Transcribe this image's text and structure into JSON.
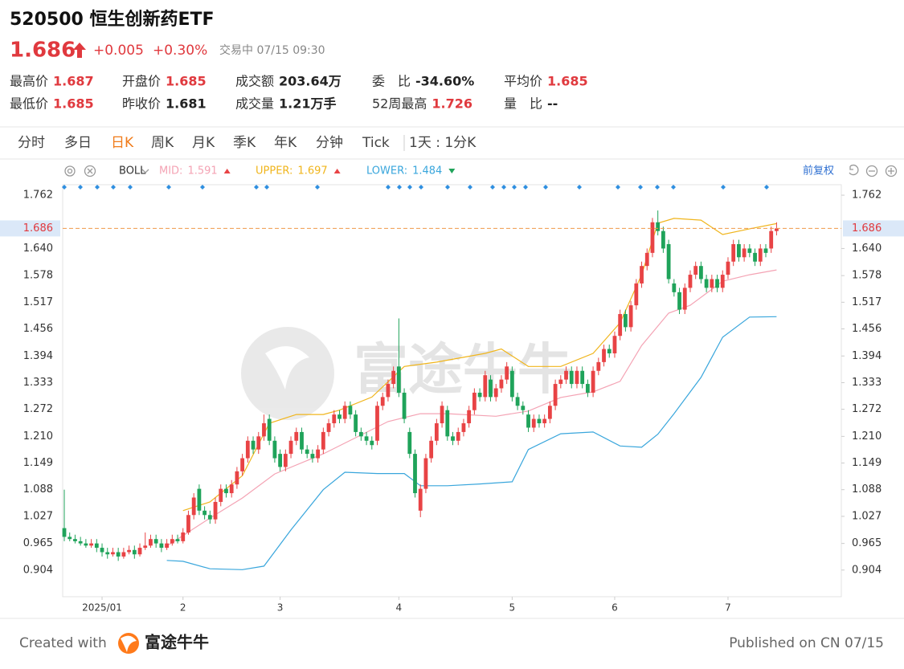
{
  "header": {
    "title": "520500 恒生创新药ETF",
    "price": "1.686",
    "change": "+0.005",
    "change_pct": "+0.30%",
    "status": "交易中 07/15 09:30"
  },
  "stats": [
    [
      {
        "label": "最高价",
        "value": "1.687",
        "color": "#e0393e"
      },
      {
        "label": "开盘价",
        "value": "1.685",
        "color": "#e0393e"
      },
      {
        "label": "成交额",
        "value": "203.64万",
        "color": "#222222"
      },
      {
        "label": "委　比",
        "value": "-34.60%",
        "color": "#222222"
      },
      {
        "label": "平均价",
        "value": "1.685",
        "color": "#e0393e"
      }
    ],
    [
      {
        "label": "最低价",
        "value": "1.685",
        "color": "#e0393e"
      },
      {
        "label": "昨收价",
        "value": "1.681",
        "color": "#222222"
      },
      {
        "label": "成交量",
        "value": "1.21万手",
        "color": "#222222"
      },
      {
        "label": "52周最高",
        "value": "1.726",
        "color": "#e0393e"
      },
      {
        "label": "量　比",
        "value": "--",
        "color": "#222222"
      }
    ]
  ],
  "tabs": [
    "分时",
    "多日",
    "日K",
    "周K",
    "月K",
    "季K",
    "年K",
    "分钟",
    "Tick",
    "1天 : 1分K"
  ],
  "active_tab": 2,
  "footer": {
    "created": "Created with",
    "brand": "富途牛牛",
    "published": "Published on CN 07/15"
  },
  "chart_data": {
    "type": "candlestick",
    "indicator": "BOLL",
    "adjust": "前复权",
    "watermark": "富途牛牛",
    "up_color": "#e84345",
    "down_color": "#1fa35a",
    "last_price": 1.686,
    "xlim": [
      -0.3,
      144
    ],
    "ylim": [
      0.843,
      1.786
    ],
    "xticks": [
      {
        "value": 7,
        "label": "2025/01"
      },
      {
        "value": 22,
        "label": "2"
      },
      {
        "value": 40,
        "label": "3"
      },
      {
        "value": 62,
        "label": "4"
      },
      {
        "value": 83,
        "label": "5"
      },
      {
        "value": 102,
        "label": "6"
      },
      {
        "value": 123,
        "label": "7"
      }
    ],
    "yticks": [
      0.904,
      0.965,
      1.027,
      1.088,
      1.149,
      {
        "value": 1.21,
        "label": "1.210"
      },
      1.272,
      1.333,
      1.394,
      1.456,
      1.517,
      1.578,
      {
        "value": 1.64,
        "label": "1.640"
      },
      1.762
    ],
    "open": [
      1.0,
      0.98,
      0.975,
      0.97,
      0.965,
      0.96,
      0.965,
      0.955,
      0.945,
      0.94,
      0.945,
      0.935,
      0.945,
      0.95,
      0.94,
      0.955,
      0.96,
      0.975,
      0.965,
      0.955,
      0.965,
      0.975,
      0.97,
      0.99,
      1.03,
      1.09,
      1.04,
      1.03,
      1.02,
      1.06,
      1.09,
      1.08,
      1.1,
      1.13,
      1.16,
      1.2,
      1.18,
      1.21,
      1.25,
      1.2,
      1.17,
      1.14,
      1.17,
      1.2,
      1.22,
      1.18,
      1.17,
      1.16,
      1.18,
      1.22,
      1.24,
      1.26,
      1.25,
      1.28,
      1.26,
      1.22,
      1.21,
      1.2,
      1.2,
      1.28,
      1.3,
      1.33,
      1.37,
      1.31,
      1.22,
      1.17,
      1.04,
      1.09,
      1.16,
      1.2,
      1.24,
      1.27,
      1.21,
      1.2,
      1.22,
      1.24,
      1.27,
      1.31,
      1.3,
      1.34,
      1.3,
      1.32,
      1.34,
      1.36,
      1.3,
      1.28,
      1.26,
      1.23,
      1.25,
      1.24,
      1.25,
      1.28,
      1.33,
      1.34,
      1.36,
      1.33,
      1.36,
      1.33,
      1.31,
      1.36,
      1.38,
      1.41,
      1.4,
      1.44,
      1.49,
      1.46,
      1.51,
      1.56,
      1.6,
      1.63,
      1.7,
      1.68,
      1.65,
      1.56,
      1.54,
      1.5,
      1.55,
      1.58,
      1.6,
      1.57,
      1.55,
      1.57,
      1.55,
      1.58,
      1.61,
      1.65,
      1.62,
      1.64,
      1.63,
      1.61,
      1.64,
      1.64,
      1.68
    ],
    "high": [
      1.088,
      0.99,
      0.985,
      0.98,
      0.975,
      0.975,
      0.975,
      0.965,
      0.955,
      0.955,
      0.955,
      0.955,
      0.96,
      0.96,
      0.965,
      0.99,
      0.985,
      0.985,
      0.975,
      0.975,
      0.985,
      0.985,
      1.0,
      1.04,
      1.08,
      1.1,
      1.05,
      1.04,
      1.07,
      1.1,
      1.1,
      1.11,
      1.14,
      1.17,
      1.21,
      1.21,
      1.22,
      1.26,
      1.26,
      1.21,
      1.18,
      1.18,
      1.21,
      1.23,
      1.23,
      1.19,
      1.18,
      1.19,
      1.23,
      1.25,
      1.27,
      1.27,
      1.29,
      1.29,
      1.27,
      1.23,
      1.22,
      1.21,
      1.29,
      1.31,
      1.34,
      1.37,
      1.48,
      1.32,
      1.23,
      1.18,
      1.1,
      1.17,
      1.21,
      1.25,
      1.29,
      1.28,
      1.22,
      1.23,
      1.25,
      1.28,
      1.32,
      1.32,
      1.36,
      1.35,
      1.33,
      1.35,
      1.38,
      1.37,
      1.31,
      1.29,
      1.27,
      1.26,
      1.26,
      1.26,
      1.29,
      1.34,
      1.35,
      1.37,
      1.37,
      1.37,
      1.37,
      1.34,
      1.37,
      1.39,
      1.42,
      1.42,
      1.45,
      1.5,
      1.5,
      1.52,
      1.57,
      1.61,
      1.64,
      1.71,
      1.727,
      1.69,
      1.66,
      1.57,
      1.55,
      1.56,
      1.59,
      1.61,
      1.61,
      1.58,
      1.58,
      1.58,
      1.59,
      1.62,
      1.66,
      1.66,
      1.65,
      1.65,
      1.64,
      1.65,
      1.65,
      1.69,
      1.7
    ],
    "low": [
      0.97,
      0.97,
      0.965,
      0.96,
      0.955,
      0.955,
      0.945,
      0.935,
      0.93,
      0.935,
      0.925,
      0.93,
      0.94,
      0.93,
      0.935,
      0.95,
      0.955,
      0.955,
      0.945,
      0.95,
      0.96,
      0.965,
      0.965,
      0.985,
      1.02,
      1.03,
      1.02,
      1.01,
      1.01,
      1.05,
      1.07,
      1.07,
      1.09,
      1.12,
      1.15,
      1.17,
      1.17,
      1.2,
      1.19,
      1.15,
      1.13,
      1.13,
      1.16,
      1.19,
      1.17,
      1.16,
      1.15,
      1.15,
      1.17,
      1.21,
      1.23,
      1.24,
      1.24,
      1.25,
      1.21,
      1.2,
      1.19,
      1.18,
      1.19,
      1.27,
      1.29,
      1.32,
      1.3,
      1.24,
      1.16,
      1.07,
      1.025,
      1.08,
      1.15,
      1.19,
      1.23,
      1.2,
      1.19,
      1.19,
      1.21,
      1.23,
      1.26,
      1.29,
      1.29,
      1.29,
      1.29,
      1.31,
      1.33,
      1.29,
      1.27,
      1.26,
      1.22,
      1.22,
      1.23,
      1.23,
      1.24,
      1.27,
      1.32,
      1.33,
      1.32,
      1.32,
      1.32,
      1.3,
      1.3,
      1.35,
      1.37,
      1.39,
      1.39,
      1.43,
      1.45,
      1.45,
      1.5,
      1.55,
      1.59,
      1.62,
      1.67,
      1.63,
      1.56,
      1.53,
      1.49,
      1.49,
      1.54,
      1.57,
      1.56,
      1.54,
      1.54,
      1.54,
      1.54,
      1.57,
      1.6,
      1.61,
      1.61,
      1.62,
      1.6,
      1.6,
      1.62,
      1.63,
      1.67
    ],
    "close": [
      0.98,
      0.975,
      0.97,
      0.965,
      0.96,
      0.965,
      0.955,
      0.945,
      0.94,
      0.945,
      0.935,
      0.945,
      0.95,
      0.94,
      0.955,
      0.96,
      0.975,
      0.965,
      0.955,
      0.965,
      0.975,
      0.97,
      0.99,
      1.03,
      1.07,
      1.04,
      1.03,
      1.02,
      1.06,
      1.09,
      1.08,
      1.1,
      1.13,
      1.16,
      1.2,
      1.18,
      1.21,
      1.24,
      1.2,
      1.16,
      1.14,
      1.17,
      1.2,
      1.22,
      1.18,
      1.17,
      1.16,
      1.18,
      1.22,
      1.24,
      1.26,
      1.25,
      1.28,
      1.26,
      1.22,
      1.21,
      1.2,
      1.19,
      1.28,
      1.3,
      1.33,
      1.36,
      1.31,
      1.25,
      1.17,
      1.08,
      1.09,
      1.16,
      1.2,
      1.24,
      1.28,
      1.21,
      1.2,
      1.22,
      1.24,
      1.27,
      1.31,
      1.3,
      1.35,
      1.3,
      1.32,
      1.34,
      1.37,
      1.3,
      1.28,
      1.27,
      1.23,
      1.25,
      1.24,
      1.25,
      1.28,
      1.33,
      1.34,
      1.36,
      1.33,
      1.36,
      1.33,
      1.31,
      1.36,
      1.38,
      1.41,
      1.4,
      1.44,
      1.49,
      1.46,
      1.51,
      1.56,
      1.6,
      1.63,
      1.7,
      1.68,
      1.64,
      1.57,
      1.54,
      1.5,
      1.55,
      1.58,
      1.6,
      1.57,
      1.55,
      1.57,
      1.55,
      1.58,
      1.61,
      1.65,
      1.62,
      1.64,
      1.63,
      1.61,
      1.64,
      1.63,
      1.68,
      1.686
    ],
    "series": [
      {
        "name": "MID:",
        "color": "#f4a3b4",
        "current": 1.591,
        "marker": "up",
        "x": [
          19,
          27,
          33,
          39,
          48,
          54,
          60,
          66,
          71,
          80,
          86,
          92,
          98,
          103,
          107,
          112,
          116,
          122,
          127,
          132
        ],
        "values": [
          0.959,
          1.023,
          1.069,
          1.124,
          1.17,
          1.207,
          1.244,
          1.262,
          1.262,
          1.256,
          1.268,
          1.299,
          1.312,
          1.336,
          1.418,
          1.492,
          1.51,
          1.565,
          1.58,
          1.591
        ]
      },
      {
        "name": "UPPER:",
        "color": "#f0b51c",
        "current": 1.697,
        "marker": "up",
        "x": [
          22,
          27,
          33,
          38,
          43,
          48,
          51,
          57,
          63,
          69,
          78,
          81,
          86,
          92,
          98,
          103,
          107,
          110,
          113,
          118,
          122,
          127,
          132
        ],
        "values": [
          1.04,
          1.06,
          1.12,
          1.24,
          1.26,
          1.26,
          1.27,
          1.3,
          1.37,
          1.38,
          1.4,
          1.41,
          1.37,
          1.37,
          1.4,
          1.47,
          1.58,
          1.698,
          1.709,
          1.705,
          1.672,
          1.685,
          1.697
        ]
      },
      {
        "name": "LOWER:",
        "color": "#39a6dc",
        "current": 1.484,
        "marker": "down",
        "x": [
          19,
          22,
          27,
          33,
          37,
          42,
          48,
          52,
          58,
          63,
          66,
          71,
          77,
          83,
          86,
          92,
          98,
          103,
          107,
          110,
          113,
          118,
          122,
          127,
          132
        ],
        "values": [
          0.926,
          0.924,
          0.907,
          0.905,
          0.913,
          0.996,
          1.088,
          1.128,
          1.125,
          1.125,
          1.097,
          1.097,
          1.101,
          1.106,
          1.18,
          1.216,
          1.22,
          1.188,
          1.185,
          1.215,
          1.262,
          1.345,
          1.437,
          1.483,
          1.484
        ]
      }
    ]
  }
}
